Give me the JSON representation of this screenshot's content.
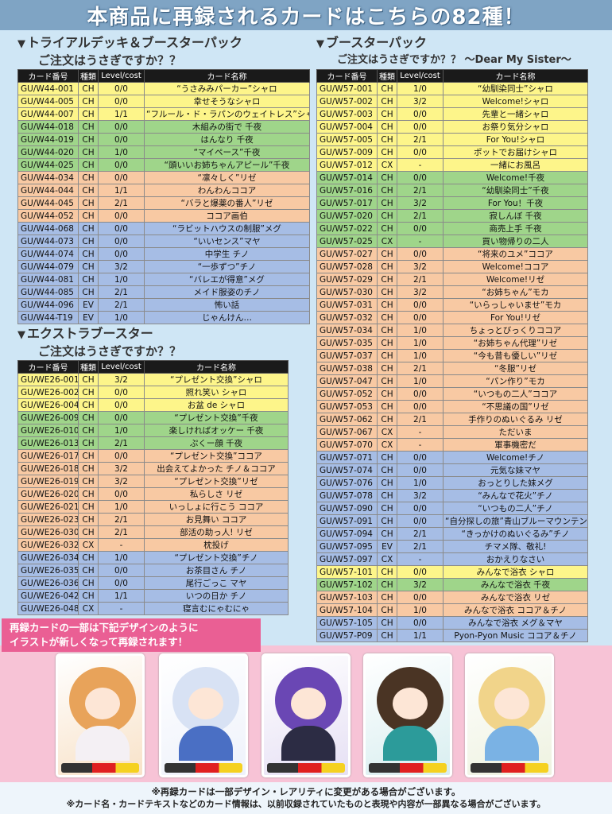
{
  "banner": "本商品に再録されるカードはこちらの82種！",
  "headers": [
    "カード番号",
    "種類",
    "Level/cost",
    "カード名称"
  ],
  "sections": {
    "trial": {
      "title_line1": "トライアルデッキ＆ブースターパック",
      "title_line2": "ご注文はうさぎですか？？",
      "rows": [
        {
          "no": "GU/W44-001",
          "type": "CH",
          "lv": "0/0",
          "name": "“うさみみパーカー”シャロ",
          "c": "yellow"
        },
        {
          "no": "GU/W44-005",
          "type": "CH",
          "lv": "0/0",
          "name": "幸せそうなシャロ",
          "c": "yellow"
        },
        {
          "no": "GU/W44-007",
          "type": "CH",
          "lv": "1/1",
          "name": "“フルール・ド・ラパンのウェイトレス”シャロ",
          "c": "yellow"
        },
        {
          "no": "GU/W44-018",
          "type": "CH",
          "lv": "0/0",
          "name": "木組みの街で 千夜",
          "c": "green"
        },
        {
          "no": "GU/W44-019",
          "type": "CH",
          "lv": "0/0",
          "name": "はんなり 千夜",
          "c": "green"
        },
        {
          "no": "GU/W44-020",
          "type": "CH",
          "lv": "1/0",
          "name": "“マイペース”千夜",
          "c": "green"
        },
        {
          "no": "GU/W44-025",
          "type": "CH",
          "lv": "0/0",
          "name": "“頭いいお姉ちゃんアピール”千夜",
          "c": "green"
        },
        {
          "no": "GU/W44-034",
          "type": "CH",
          "lv": "0/0",
          "name": "“凛々しく”リゼ",
          "c": "orange"
        },
        {
          "no": "GU/W44-044",
          "type": "CH",
          "lv": "1/1",
          "name": "わんわんココア",
          "c": "orange"
        },
        {
          "no": "GU/W44-045",
          "type": "CH",
          "lv": "2/1",
          "name": "“バラと爆薬の番人”リゼ",
          "c": "orange"
        },
        {
          "no": "GU/W44-052",
          "type": "CH",
          "lv": "0/0",
          "name": "ココア画伯",
          "c": "orange"
        },
        {
          "no": "GU/W44-068",
          "type": "CH",
          "lv": "0/0",
          "name": "“ラビットハウスの制服”メグ",
          "c": "blue"
        },
        {
          "no": "GU/W44-073",
          "type": "CH",
          "lv": "0/0",
          "name": "“いいセンス”マヤ",
          "c": "blue"
        },
        {
          "no": "GU/W44-074",
          "type": "CH",
          "lv": "0/0",
          "name": "中学生 チノ",
          "c": "blue"
        },
        {
          "no": "GU/W44-079",
          "type": "CH",
          "lv": "3/2",
          "name": "“一歩ずつ”チノ",
          "c": "blue"
        },
        {
          "no": "GU/W44-081",
          "type": "CH",
          "lv": "1/0",
          "name": "“バレエが得意”メグ",
          "c": "blue"
        },
        {
          "no": "GU/W44-085",
          "type": "CH",
          "lv": "2/1",
          "name": "メイド服姿のチノ",
          "c": "blue"
        },
        {
          "no": "GU/W44-096",
          "type": "EV",
          "lv": "2/1",
          "name": "怖い話",
          "c": "blue"
        },
        {
          "no": "GU/W44-T19",
          "type": "EV",
          "lv": "1/0",
          "name": "じゃんけん…",
          "c": "blue"
        }
      ]
    },
    "extra": {
      "title_line1": "エクストラブースター",
      "title_line2": "ご注文はうさぎですか？？",
      "rows": [
        {
          "no": "GU/WE26-001",
          "type": "CH",
          "lv": "3/2",
          "name": "“プレゼント交換”シャロ",
          "c": "yellow"
        },
        {
          "no": "GU/WE26-002",
          "type": "CH",
          "lv": "0/0",
          "name": "照れ笑い シャロ",
          "c": "yellow"
        },
        {
          "no": "GU/WE26-004",
          "type": "CH",
          "lv": "0/0",
          "name": "お盆 de シャロ",
          "c": "yellow"
        },
        {
          "no": "GU/WE26-009",
          "type": "CH",
          "lv": "0/0",
          "name": "“プレゼント交換”千夜",
          "c": "green"
        },
        {
          "no": "GU/WE26-010",
          "type": "CH",
          "lv": "1/0",
          "name": "楽しければオッケー 千夜",
          "c": "green"
        },
        {
          "no": "GU/WE26-013",
          "type": "CH",
          "lv": "2/1",
          "name": "ぷくー顔 千夜",
          "c": "green"
        },
        {
          "no": "GU/WE26-017",
          "type": "CH",
          "lv": "0/0",
          "name": "“プレゼント交換”ココア",
          "c": "orange"
        },
        {
          "no": "GU/WE26-018",
          "type": "CH",
          "lv": "3/2",
          "name": "出会えてよかった チノ＆ココア",
          "c": "orange"
        },
        {
          "no": "GU/WE26-019",
          "type": "CH",
          "lv": "3/2",
          "name": "“プレゼント交換”リゼ",
          "c": "orange"
        },
        {
          "no": "GU/WE26-020",
          "type": "CH",
          "lv": "0/0",
          "name": "私らしさ リゼ",
          "c": "orange"
        },
        {
          "no": "GU/WE26-021",
          "type": "CH",
          "lv": "1/0",
          "name": "いっしょに行こう ココア",
          "c": "orange"
        },
        {
          "no": "GU/WE26-023",
          "type": "CH",
          "lv": "2/1",
          "name": "お見舞い ココア",
          "c": "orange"
        },
        {
          "no": "GU/WE26-030",
          "type": "CH",
          "lv": "2/1",
          "name": "部活の助っ人! リゼ",
          "c": "orange"
        },
        {
          "no": "GU/WE26-032",
          "type": "CX",
          "lv": "-",
          "name": "枕投げ",
          "c": "orange"
        },
        {
          "no": "GU/WE26-034",
          "type": "CH",
          "lv": "1/0",
          "name": "“プレゼント交換”チノ",
          "c": "blue"
        },
        {
          "no": "GU/WE26-035",
          "type": "CH",
          "lv": "0/0",
          "name": "お茶目さん チノ",
          "c": "blue"
        },
        {
          "no": "GU/WE26-036",
          "type": "CH",
          "lv": "0/0",
          "name": "尾行ごっこ マヤ",
          "c": "blue"
        },
        {
          "no": "GU/WE26-042",
          "type": "CH",
          "lv": "1/1",
          "name": "いつの日か チノ",
          "c": "blue"
        },
        {
          "no": "GU/WE26-048",
          "type": "CX",
          "lv": "-",
          "name": "寝言むにゃむにゃ",
          "c": "blue"
        }
      ]
    },
    "booster": {
      "title_line1": "ブースターパック",
      "title_line2": "ご注文はうさぎですか？？ ～Dear My Sister～",
      "rows": [
        {
          "no": "GU/W57-001",
          "type": "CH",
          "lv": "1/0",
          "name": "“幼馴染同士”シャロ",
          "c": "yellow"
        },
        {
          "no": "GU/W57-002",
          "type": "CH",
          "lv": "3/2",
          "name": "Welcome!シャロ",
          "c": "yellow"
        },
        {
          "no": "GU/W57-003",
          "type": "CH",
          "lv": "0/0",
          "name": "先輩と一緒シャロ",
          "c": "yellow"
        },
        {
          "no": "GU/W57-004",
          "type": "CH",
          "lv": "0/0",
          "name": "お祭り気分シャロ",
          "c": "yellow"
        },
        {
          "no": "GU/W57-005",
          "type": "CH",
          "lv": "2/1",
          "name": "For You!シャロ",
          "c": "yellow"
        },
        {
          "no": "GU/W57-009",
          "type": "CH",
          "lv": "0/0",
          "name": "ポットでお届けシャロ",
          "c": "yellow"
        },
        {
          "no": "GU/W57-012",
          "type": "CX",
          "lv": "-",
          "name": "一緒にお風呂",
          "c": "yellow"
        },
        {
          "no": "GU/W57-014",
          "type": "CH",
          "lv": "0/0",
          "name": "Welcome!千夜",
          "c": "green"
        },
        {
          "no": "GU/W57-016",
          "type": "CH",
          "lv": "2/1",
          "name": "“幼馴染同士”千夜",
          "c": "green"
        },
        {
          "no": "GU/W57-017",
          "type": "CH",
          "lv": "3/2",
          "name": "For You！千夜",
          "c": "green"
        },
        {
          "no": "GU/W57-020",
          "type": "CH",
          "lv": "2/1",
          "name": "寂しんぼ 千夜",
          "c": "green"
        },
        {
          "no": "GU/W57-022",
          "type": "CH",
          "lv": "0/0",
          "name": "商売上手 千夜",
          "c": "green"
        },
        {
          "no": "GU/W57-025",
          "type": "CX",
          "lv": "-",
          "name": "買い物帰りの二人",
          "c": "green"
        },
        {
          "no": "GU/W57-027",
          "type": "CH",
          "lv": "0/0",
          "name": "“将来のユメ”ココア",
          "c": "orange"
        },
        {
          "no": "GU/W57-028",
          "type": "CH",
          "lv": "3/2",
          "name": "Welcome!ココア",
          "c": "orange"
        },
        {
          "no": "GU/W57-029",
          "type": "CH",
          "lv": "2/1",
          "name": "Welcome!リゼ",
          "c": "orange"
        },
        {
          "no": "GU/W57-030",
          "type": "CH",
          "lv": "3/2",
          "name": "“お姉ちゃん”モカ",
          "c": "orange"
        },
        {
          "no": "GU/W57-031",
          "type": "CH",
          "lv": "0/0",
          "name": "“いらっしゃいませ”モカ",
          "c": "orange"
        },
        {
          "no": "GU/W57-032",
          "type": "CH",
          "lv": "0/0",
          "name": "For You!リゼ",
          "c": "orange"
        },
        {
          "no": "GU/W57-034",
          "type": "CH",
          "lv": "1/0",
          "name": "ちょっとびっくりココア",
          "c": "orange"
        },
        {
          "no": "GU/W57-035",
          "type": "CH",
          "lv": "1/0",
          "name": "“お姉ちゃん代理”リゼ",
          "c": "orange"
        },
        {
          "no": "GU/W57-037",
          "type": "CH",
          "lv": "1/0",
          "name": "“今も昔も優しい”リゼ",
          "c": "orange"
        },
        {
          "no": "GU/W57-038",
          "type": "CH",
          "lv": "2/1",
          "name": "“冬服”リゼ",
          "c": "orange"
        },
        {
          "no": "GU/W57-047",
          "type": "CH",
          "lv": "1/0",
          "name": "“パン作り”モカ",
          "c": "orange"
        },
        {
          "no": "GU/W57-052",
          "type": "CH",
          "lv": "0/0",
          "name": "“いつもの二人”ココア",
          "c": "orange"
        },
        {
          "no": "GU/W57-053",
          "type": "CH",
          "lv": "0/0",
          "name": "“不思議の国”リゼ",
          "c": "orange"
        },
        {
          "no": "GU/W57-062",
          "type": "CH",
          "lv": "2/1",
          "name": "手作りのぬいぐるみ リゼ",
          "c": "orange"
        },
        {
          "no": "GU/W57-067",
          "type": "CX",
          "lv": "-",
          "name": "ただいま",
          "c": "orange"
        },
        {
          "no": "GU/W57-070",
          "type": "CX",
          "lv": "-",
          "name": "軍事機密だ",
          "c": "orange"
        },
        {
          "no": "GU/W57-071",
          "type": "CH",
          "lv": "0/0",
          "name": "Welcome!チノ",
          "c": "blue"
        },
        {
          "no": "GU/W57-074",
          "type": "CH",
          "lv": "0/0",
          "name": "元気な妹マヤ",
          "c": "blue"
        },
        {
          "no": "GU/W57-076",
          "type": "CH",
          "lv": "1/0",
          "name": "おっとりした妹メグ",
          "c": "blue"
        },
        {
          "no": "GU/W57-078",
          "type": "CH",
          "lv": "3/2",
          "name": "“みんなで花火”チノ",
          "c": "blue"
        },
        {
          "no": "GU/W57-090",
          "type": "CH",
          "lv": "0/0",
          "name": "“いつもの二人”チノ",
          "c": "blue"
        },
        {
          "no": "GU/W57-091",
          "type": "CH",
          "lv": "0/0",
          "name": "“自分探しの旅”青山ブルーマウンテン",
          "c": "blue"
        },
        {
          "no": "GU/W57-094",
          "type": "CH",
          "lv": "2/1",
          "name": "“きっかけのぬいぐるみ”チノ",
          "c": "blue"
        },
        {
          "no": "GU/W57-095",
          "type": "EV",
          "lv": "2/1",
          "name": "チマメ隊、敬礼!",
          "c": "blue"
        },
        {
          "no": "GU/W57-097",
          "type": "CX",
          "lv": "-",
          "name": "おかえりなさい",
          "c": "blue"
        },
        {
          "no": "GU/W57-101",
          "type": "CH",
          "lv": "0/0",
          "name": "みんなで浴衣 シャロ",
          "c": "yellow"
        },
        {
          "no": "GU/W57-102",
          "type": "CH",
          "lv": "3/2",
          "name": "みんなで浴衣 千夜",
          "c": "green"
        },
        {
          "no": "GU/W57-103",
          "type": "CH",
          "lv": "0/0",
          "name": "みんなで浴衣 リゼ",
          "c": "orange"
        },
        {
          "no": "GU/W57-104",
          "type": "CH",
          "lv": "1/0",
          "name": "みんなで浴衣 ココア＆チノ",
          "c": "orange"
        },
        {
          "no": "GU/W57-105",
          "type": "CH",
          "lv": "0/0",
          "name": "みんなで浴衣 メグ＆マヤ",
          "c": "blue"
        },
        {
          "no": "GU/W57-P09",
          "type": "CH",
          "lv": "1/1",
          "name": "Pyon-Pyon Music ココア＆チノ",
          "c": "blue"
        }
      ]
    }
  },
  "notice": {
    "line1": "再録カードの一部は下記デザインのように",
    "line2": "イラストが新しくなって再録されます！"
  },
  "arts": [
    {
      "hair": "#e8a35a",
      "outfit": "#f4f0f4",
      "bg": "#f8e2c8"
    },
    {
      "hair": "#d8e2f4",
      "outfit": "#4a6fc4",
      "bg": "#eef2fb"
    },
    {
      "hair": "#6a47b4",
      "outfit": "#2c2c44",
      "bg": "#e6e0f4"
    },
    {
      "hair": "#4a3424",
      "outfit": "#2c9b9a",
      "bg": "#d8eef0"
    },
    {
      "hair": "#f1d48a",
      "outfit": "#7ab2e4",
      "bg": "#eef2e0"
    }
  ],
  "footer": {
    "line1": "※再録カードは一部デザイン・レアリティに変更がある場合がございます。",
    "line2": "※カード名・カードテキストなどのカード情報は、以前収録されていたものと表現や内容が一部異なる場合がございます。"
  }
}
